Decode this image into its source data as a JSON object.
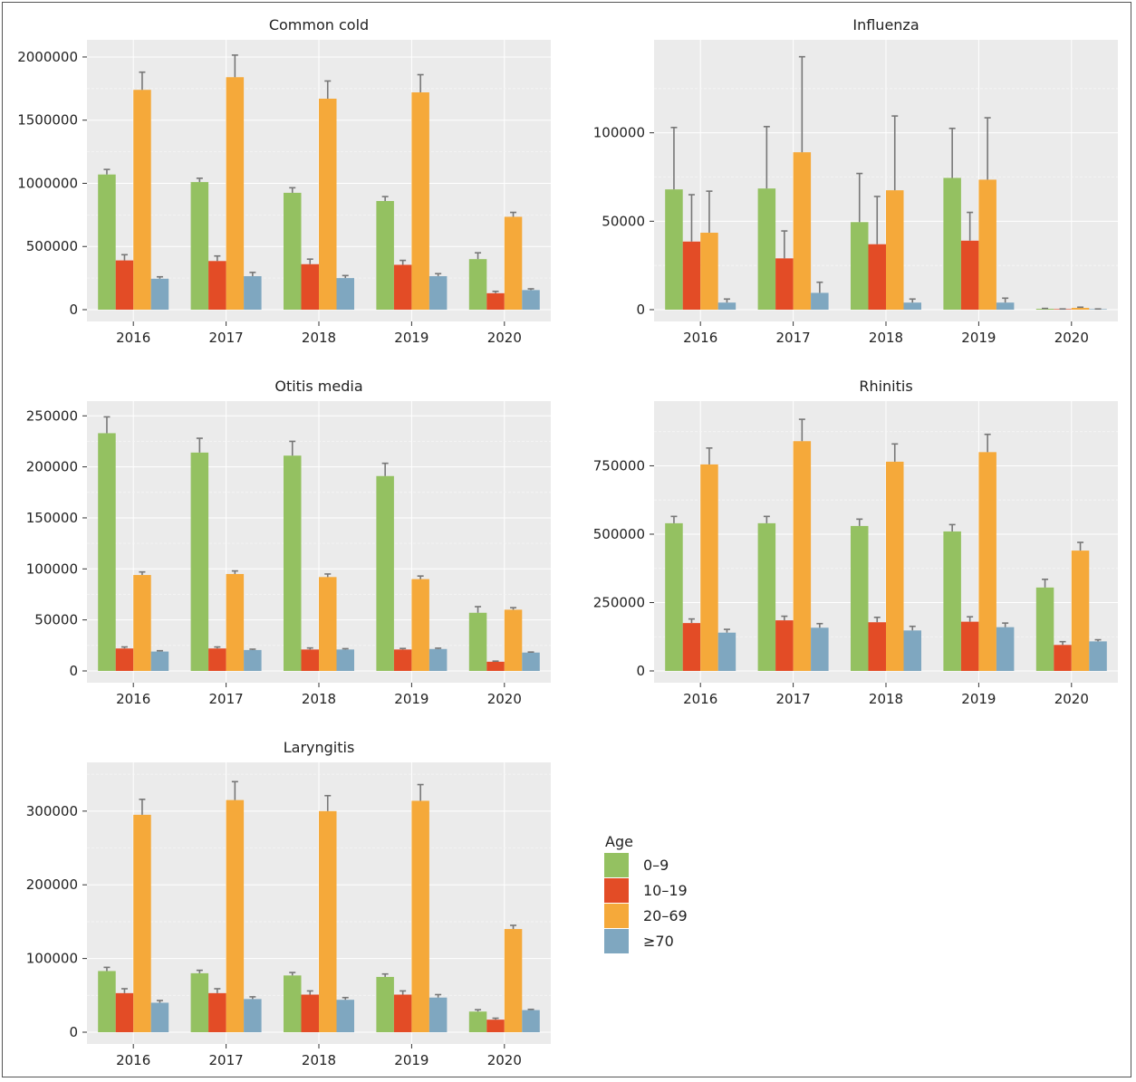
{
  "chart_data": [
    {
      "type": "bar",
      "title": "Common cold",
      "categories": [
        "2016",
        "2017",
        "2018",
        "2019",
        "2020"
      ],
      "ylim": [
        0,
        2100000
      ],
      "yticks": [
        0,
        500000,
        1000000,
        1500000,
        2000000
      ],
      "ytick_labels": [
        "0",
        "500000",
        "1000000",
        "1500000",
        "2000000"
      ],
      "series": [
        {
          "name": "0–9",
          "values": [
            1070000,
            1010000,
            925000,
            860000,
            400000
          ],
          "errors": [
            40000,
            30000,
            40000,
            35000,
            50000
          ]
        },
        {
          "name": "10–19",
          "values": [
            390000,
            385000,
            360000,
            355000,
            130000
          ],
          "errors": [
            45000,
            40000,
            40000,
            35000,
            15000
          ]
        },
        {
          "name": "20–69",
          "values": [
            1740000,
            1840000,
            1670000,
            1720000,
            735000
          ],
          "errors": [
            140000,
            175000,
            140000,
            140000,
            35000
          ]
        },
        {
          "name": "≥70",
          "values": [
            245000,
            265000,
            250000,
            265000,
            155000
          ],
          "errors": [
            15000,
            30000,
            20000,
            20000,
            10000
          ]
        }
      ]
    },
    {
      "type": "bar",
      "title": "Influenza",
      "categories": [
        "2016",
        "2017",
        "2018",
        "2019",
        "2020"
      ],
      "ylim": [
        0,
        150000
      ],
      "yticks": [
        0,
        50000,
        100000
      ],
      "ytick_labels": [
        "0",
        "50000",
        "100000"
      ],
      "series": [
        {
          "name": "0–9",
          "values": [
            68000,
            68500,
            49500,
            74500,
            500
          ],
          "errors": [
            35000,
            35000,
            27500,
            28000,
            200
          ]
        },
        {
          "name": "10–19",
          "values": [
            38500,
            29000,
            37000,
            39000,
            300
          ],
          "errors": [
            26500,
            15500,
            27000,
            16000,
            100
          ]
        },
        {
          "name": "20–69",
          "values": [
            43500,
            89000,
            67500,
            73500,
            1000
          ],
          "errors": [
            23500,
            54000,
            42000,
            35000,
            400
          ]
        },
        {
          "name": "≥70",
          "values": [
            4000,
            9500,
            4000,
            4000,
            300
          ],
          "errors": [
            2000,
            6000,
            2000,
            2500,
            100
          ]
        }
      ]
    },
    {
      "type": "bar",
      "title": "Otitis media",
      "categories": [
        "2016",
        "2017",
        "2018",
        "2019",
        "2020"
      ],
      "ylim": [
        0,
        260000
      ],
      "yticks": [
        0,
        50000,
        100000,
        150000,
        200000,
        250000
      ],
      "ytick_labels": [
        "0",
        "50000",
        "100000",
        "150000",
        "200000",
        "250000"
      ],
      "series": [
        {
          "name": "0–9",
          "values": [
            233000,
            214000,
            211000,
            191000,
            57000
          ],
          "errors": [
            16000,
            14000,
            14000,
            12500,
            6000
          ]
        },
        {
          "name": "10–19",
          "values": [
            22000,
            22000,
            21000,
            21000,
            9000
          ],
          "errors": [
            1500,
            1500,
            1500,
            1000,
            600
          ]
        },
        {
          "name": "20–69",
          "values": [
            94000,
            95000,
            92000,
            90000,
            60000
          ],
          "errors": [
            3000,
            3000,
            3000,
            3000,
            2000
          ]
        },
        {
          "name": "≥70",
          "values": [
            19000,
            20500,
            21000,
            21500,
            18000
          ],
          "errors": [
            800,
            800,
            800,
            800,
            500
          ]
        }
      ]
    },
    {
      "type": "bar",
      "title": "Rhinitis",
      "categories": [
        "2016",
        "2017",
        "2018",
        "2019",
        "2020"
      ],
      "ylim": [
        0,
        970000
      ],
      "yticks": [
        0,
        250000,
        500000,
        750000
      ],
      "ytick_labels": [
        "0",
        "250000",
        "500000",
        "750000"
      ],
      "series": [
        {
          "name": "0–9",
          "values": [
            540000,
            540000,
            530000,
            510000,
            305000
          ],
          "errors": [
            25000,
            25000,
            25000,
            25000,
            30000
          ]
        },
        {
          "name": "10–19",
          "values": [
            175000,
            185000,
            178000,
            180000,
            95000
          ],
          "errors": [
            15000,
            15000,
            18000,
            18000,
            12000
          ]
        },
        {
          "name": "20–69",
          "values": [
            755000,
            840000,
            765000,
            800000,
            440000
          ],
          "errors": [
            60000,
            80000,
            65000,
            65000,
            30000
          ]
        },
        {
          "name": "≥70",
          "values": [
            140000,
            158000,
            148000,
            160000,
            108000
          ],
          "errors": [
            12000,
            15000,
            15000,
            15000,
            6000
          ]
        }
      ]
    },
    {
      "type": "bar",
      "title": "Laryngitis",
      "categories": [
        "2016",
        "2017",
        "2018",
        "2019",
        "2020"
      ],
      "ylim": [
        0,
        360000
      ],
      "yticks": [
        0,
        100000,
        200000,
        300000
      ],
      "ytick_labels": [
        "0",
        "100000",
        "200000",
        "300000"
      ],
      "series": [
        {
          "name": "0–9",
          "values": [
            83000,
            80000,
            77000,
            75000,
            28000
          ],
          "errors": [
            5000,
            4000,
            4000,
            4000,
            2500
          ]
        },
        {
          "name": "10–19",
          "values": [
            53000,
            53000,
            51000,
            51000,
            17000
          ],
          "errors": [
            6000,
            6000,
            5000,
            5000,
            2000
          ]
        },
        {
          "name": "20–69",
          "values": [
            295000,
            315000,
            300000,
            314000,
            140000
          ],
          "errors": [
            21000,
            25000,
            21000,
            22000,
            5000
          ]
        },
        {
          "name": "≥70",
          "values": [
            40000,
            45000,
            44000,
            47000,
            30000
          ],
          "errors": [
            3000,
            3000,
            3000,
            4000,
            1000
          ]
        }
      ]
    }
  ],
  "legend": {
    "title": "Age",
    "items": [
      {
        "label": "0–9",
        "color": "#94c161"
      },
      {
        "label": "10–19",
        "color": "#e34c26"
      },
      {
        "label": "20–69",
        "color": "#f5a93a"
      },
      {
        "label": "≥70",
        "color": "#7fa7c0"
      }
    ]
  },
  "colors": {
    "series": [
      "#94c161",
      "#e34c26",
      "#f5a93a",
      "#7fa7c0"
    ],
    "panel_bg": "#ebebeb",
    "gridline": "#ffffff",
    "errorbar": "#777777"
  }
}
